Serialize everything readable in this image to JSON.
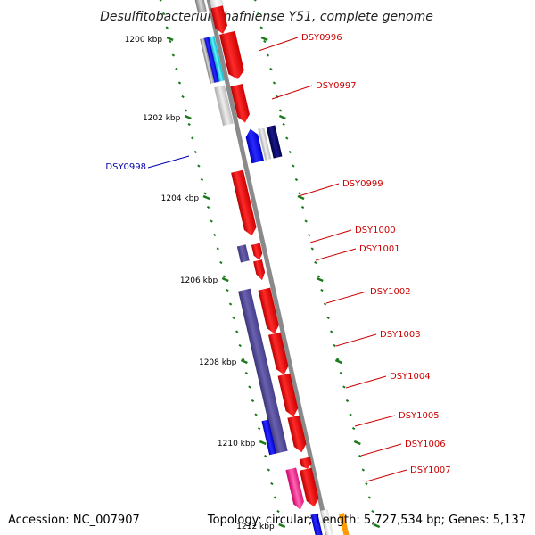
{
  "title": "Desulfitobacterium hafniense Y51, complete genome",
  "footer": {
    "accession": "Accession: NC_007907",
    "topology": "Topology: circular; Length: 5,727,534 bp; Genes: 5,137"
  },
  "colors": {
    "forward_label": "#cc0000",
    "reverse_label": "#0000aa",
    "red": "#ff0000",
    "navy": "#000066",
    "blue": "#0000ff",
    "purple": "#554c99",
    "cyan": "#00e5ff",
    "magenta": "#ff1a8c",
    "gray": "#9a9a9a",
    "light_gray": "#c8c8c8",
    "white": "#f0f0f0",
    "tick": "#1a7a1a"
  },
  "ticks": [
    {
      "label": "1200 kbp"
    },
    {
      "label": "1202 kbp"
    },
    {
      "label": "1204 kbp"
    },
    {
      "label": "1206 kbp"
    },
    {
      "label": "1208 kbp"
    },
    {
      "label": "1210 kbp"
    },
    {
      "label": "1212 kbp"
    }
  ],
  "gene_labels": [
    {
      "name": "DSY0996",
      "strand": "forward"
    },
    {
      "name": "DSY0997",
      "strand": "forward"
    },
    {
      "name": "DSY0998",
      "strand": "reverse"
    },
    {
      "name": "DSY0999",
      "strand": "forward"
    },
    {
      "name": "DSY1000",
      "strand": "forward"
    },
    {
      "name": "DSY1001",
      "strand": "forward"
    },
    {
      "name": "DSY1002",
      "strand": "forward"
    },
    {
      "name": "DSY1003",
      "strand": "forward"
    },
    {
      "name": "DSY1004",
      "strand": "forward"
    },
    {
      "name": "DSY1005",
      "strand": "forward"
    },
    {
      "name": "DSY1006",
      "strand": "forward"
    },
    {
      "name": "DSY1007",
      "strand": "forward"
    }
  ]
}
